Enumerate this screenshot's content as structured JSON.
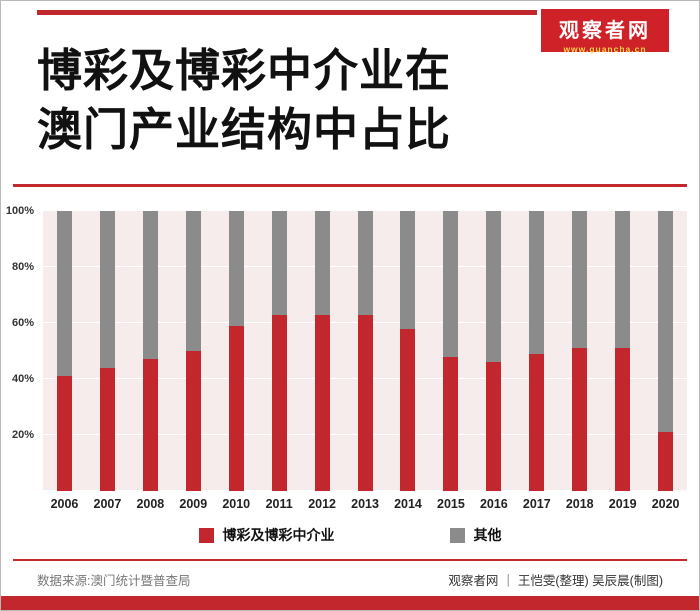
{
  "colors": {
    "accent_red": "#c1272d",
    "badge_red": "#cf2128",
    "bar_red": "#c1272d",
    "bar_gray": "#8b8b8b",
    "plot_background": "#f6ecec"
  },
  "header": {
    "title_line1": "博彩及博彩中介业在",
    "title_line2": "澳门产业结构中占比",
    "badge": {
      "name": "观察者网",
      "url": "www.guancha.cn"
    }
  },
  "chart_data": {
    "type": "bar",
    "stacked": true,
    "title": "博彩及博彩中介业在澳门产业结构中占比",
    "xlabel": "",
    "ylabel": "",
    "ylim": [
      0,
      100
    ],
    "unit": "%",
    "grid": true,
    "grid_percents": [
      0,
      20,
      40,
      60,
      80,
      100
    ],
    "y_ticks": [
      "100%",
      "80%",
      "60%",
      "40%",
      "20%"
    ],
    "legend_position": "bottom",
    "categories": [
      "2006",
      "2007",
      "2008",
      "2009",
      "2010",
      "2011",
      "2012",
      "2013",
      "2014",
      "2015",
      "2016",
      "2017",
      "2018",
      "2019",
      "2020"
    ],
    "series": [
      {
        "name": "博彩及博彩中介业",
        "color": "#c1272d",
        "values": [
          41,
          44,
          47,
          50,
          59,
          63,
          63,
          63,
          58,
          48,
          46,
          49,
          51,
          51,
          21
        ]
      },
      {
        "name": "其他",
        "color": "#8b8b8b",
        "values": [
          59,
          56,
          53,
          50,
          41,
          37,
          37,
          37,
          42,
          52,
          54,
          51,
          49,
          49,
          79
        ]
      }
    ]
  },
  "legend": [
    {
      "label": "博彩及博彩中介业",
      "color": "#c1272d"
    },
    {
      "label": "其他",
      "color": "#8b8b8b"
    }
  ],
  "footer": {
    "source": "数据来源:澳门统计暨普查局",
    "credits": "观察者网 ｜ 王恺雯(整理) 吴辰晨(制图)"
  }
}
